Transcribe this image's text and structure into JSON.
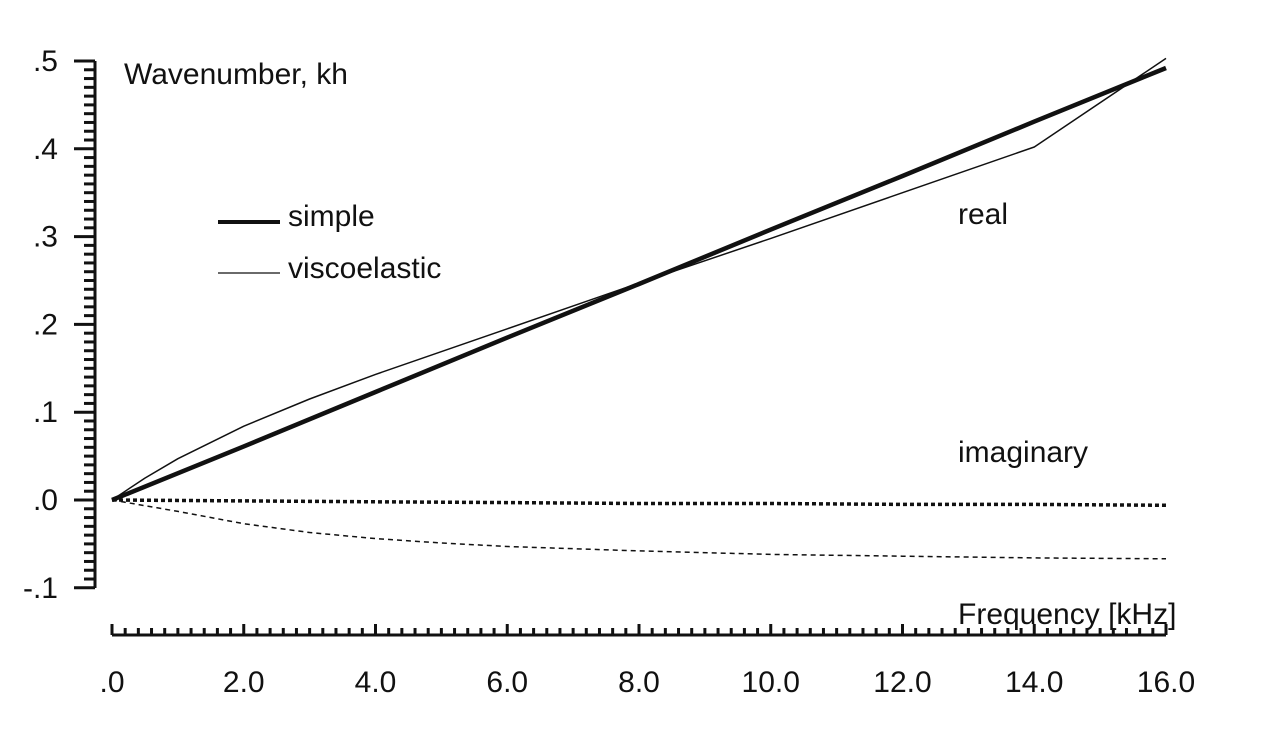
{
  "chart_data": {
    "type": "line",
    "ylabel": "Wavenumber, kh",
    "xlabel": "Frequency [kHz]",
    "xlim": [
      0,
      16
    ],
    "ylim": [
      -0.1,
      0.5
    ],
    "x_ticks": [
      ".0",
      "2.0",
      "4.0",
      "6.0",
      "8.0",
      "10.0",
      "12.0",
      "14.0",
      "16.0"
    ],
    "y_ticks": [
      ".5",
      ".4",
      ".3",
      ".2",
      ".1",
      ".0",
      "-.1"
    ],
    "legend": {
      "placement": "upper-left",
      "entries": [
        {
          "label": "simple",
          "style": "thick"
        },
        {
          "label": "viscoelastic",
          "style": "thin"
        }
      ]
    },
    "annotations": {
      "real": "real",
      "imaginary": "imaginary"
    },
    "series": [
      {
        "name": "simple",
        "part": "real",
        "style": "thick-solid",
        "x": [
          0,
          2,
          4,
          6,
          8,
          10,
          12,
          14,
          16
        ],
        "y": [
          0,
          0.061,
          0.123,
          0.185,
          0.246,
          0.308,
          0.369,
          0.431,
          0.492
        ]
      },
      {
        "name": "viscoelastic",
        "part": "real",
        "style": "thin-solid",
        "x": [
          0,
          0.5,
          1,
          2,
          3,
          4,
          6,
          8,
          10,
          12,
          14,
          16
        ],
        "y": [
          0,
          0.025,
          0.047,
          0.084,
          0.115,
          0.143,
          0.195,
          0.247,
          0.298,
          0.35,
          0.402,
          0.503
        ]
      },
      {
        "name": "simple",
        "part": "imaginary",
        "style": "thick-dotted",
        "x": [
          0,
          2,
          4,
          6,
          8,
          10,
          12,
          14,
          16
        ],
        "y": [
          0,
          -0.001,
          -0.002,
          -0.003,
          -0.004,
          -0.004,
          -0.005,
          -0.005,
          -0.006
        ]
      },
      {
        "name": "viscoelastic",
        "part": "imaginary",
        "style": "thin-dashed",
        "x": [
          0,
          1,
          2,
          3,
          4,
          5,
          6,
          8,
          10,
          12,
          14,
          16
        ],
        "y": [
          0,
          -0.013,
          -0.027,
          -0.037,
          -0.044,
          -0.049,
          -0.053,
          -0.058,
          -0.062,
          -0.064,
          -0.066,
          -0.067
        ]
      }
    ]
  },
  "style": {
    "ink": "#111111",
    "background": "#ffffff"
  }
}
